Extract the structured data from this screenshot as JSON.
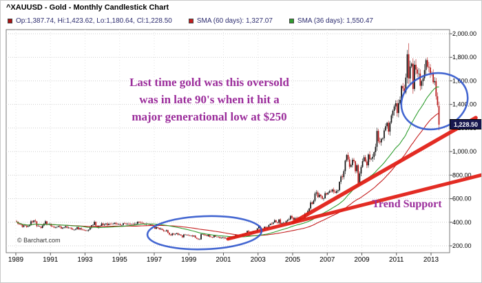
{
  "header": {
    "title": "^XAUUSD - Gold - Monthly Candlestick Chart",
    "legend": {
      "ohlc": {
        "label": "Op:1,387.74, Hi:1,423.62, Lo:1,180.64, Cl:1,228.50",
        "color": "#aa1212"
      },
      "sma60": {
        "label": "SMA (60 days): 1,327.07",
        "color": "#c41e1e"
      },
      "sma36": {
        "label": "SMA (36 days): 1,550.47",
        "color": "#2f9e2f"
      }
    }
  },
  "annotations": {
    "note_lines": [
      "Last time gold was this oversold",
      "was in late 90's when it hit a",
      "major generational low at $250"
    ],
    "trend_support_label": "Trend Support",
    "current_price_tag": "1,228.50",
    "copyright": "© Barchart.com",
    "note_color": "#9b2d9b",
    "ellipse_color": "#2f55cc",
    "trendline_color": "#e11b12"
  },
  "chart_data": {
    "type": "candlestick",
    "title": "^XAUUSD - Gold - Monthly Candlestick Chart",
    "frequency": "monthly",
    "legend_position": "top",
    "grid": true,
    "x_axis": {
      "tick_years": [
        1989,
        1991,
        1993,
        1995,
        1997,
        1999,
        2001,
        2003,
        2005,
        2007,
        2009,
        2011,
        2013
      ],
      "tick_labels": [
        "1989",
        "1991",
        "1993",
        "1995",
        "1997",
        "1999",
        "2001",
        "2003",
        "2005",
        "2007",
        "2009",
        "2011",
        "2013"
      ]
    },
    "y_axis": {
      "tick_values": [
        200,
        400,
        600,
        800,
        1000,
        1200,
        1400,
        1600,
        1800,
        2000
      ],
      "tick_labels": [
        "200.00",
        "400.00",
        "600.00",
        "800.00",
        "1,000.00",
        "1,200.00",
        "1,400.00",
        "1,600.00",
        "1,800.00",
        "2,000.00"
      ],
      "range": [
        140,
        2035
      ]
    },
    "start": {
      "year": 1989,
      "month": 1
    },
    "monthly_close": [
      404,
      387,
      383,
      378,
      361,
      373,
      369,
      360,
      366,
      375,
      408,
      401,
      415,
      408,
      368,
      368,
      363,
      352,
      372,
      388,
      408,
      380,
      384,
      386,
      366,
      363,
      355,
      357,
      361,
      368,
      362,
      347,
      355,
      357,
      366,
      353,
      354,
      353,
      344,
      337,
      337,
      343,
      358,
      340,
      349,
      339,
      335,
      333,
      329,
      329,
      337,
      354,
      375,
      378,
      403,
      371,
      355,
      369,
      370,
      390,
      377,
      382,
      389,
      377,
      387,
      386,
      385,
      386,
      395,
      384,
      383,
      383,
      375,
      376,
      392,
      390,
      385,
      387,
      383,
      382,
      384,
      383,
      387,
      387,
      405,
      400,
      396,
      391,
      390,
      382,
      387,
      386,
      379,
      379,
      371,
      369,
      345,
      358,
      351,
      340,
      345,
      334,
      326,
      324,
      332,
      311,
      296,
      290,
      304,
      297,
      301,
      308,
      293,
      296,
      288,
      273,
      296,
      292,
      294,
      288,
      287,
      287,
      280,
      287,
      268,
      261,
      255,
      255,
      299,
      300,
      291,
      290,
      283,
      294,
      276,
      275,
      272,
      289,
      277,
      277,
      274,
      265,
      269,
      272,
      265,
      266,
      258,
      264,
      267,
      271,
      266,
      274,
      293,
      279,
      275,
      277,
      282,
      297,
      301,
      308,
      327,
      319,
      304,
      313,
      323,
      317,
      318,
      348,
      368,
      347,
      336,
      339,
      361,
      346,
      355,
      376,
      388,
      386,
      398,
      416,
      402,
      396,
      424,
      388,
      393,
      395,
      391,
      410,
      420,
      425,
      453,
      438,
      422,
      435,
      428,
      435,
      417,
      437,
      429,
      433,
      473,
      470,
      495,
      517,
      568,
      556,
      582,
      644,
      653,
      613,
      634,
      623,
      599,
      603,
      646,
      636,
      651,
      664,
      661,
      677,
      659,
      650,
      665,
      672,
      743,
      789,
      783,
      834,
      923,
      971,
      933,
      871,
      885,
      930,
      918,
      833,
      884,
      730,
      814,
      869,
      919,
      952,
      916,
      883,
      975,
      934,
      939,
      955,
      995,
      1040,
      1175,
      1087,
      1078,
      1108,
      1113,
      1179,
      1215,
      1244,
      1169,
      1246,
      1307,
      1346,
      1383,
      1410,
      1327,
      1411,
      1439,
      1556,
      1536,
      1502,
      1628,
      1826,
      1620,
      1722,
      1746,
      1531,
      1737,
      1696,
      1662,
      1662,
      1558,
      1598,
      1622,
      1692,
      1776,
      1720,
      1714,
      1664,
      1660,
      1588,
      1598,
      1469,
      1394,
      1228.5
    ],
    "last_candle": {
      "open": 1387.74,
      "high": 1423.62,
      "low": 1180.64,
      "close": 1228.5
    },
    "wick_overrides": [
      {
        "year": 2011,
        "month": 9,
        "high": 1920
      }
    ],
    "overlays": [
      {
        "name": "SMA (60 days)",
        "window": 60,
        "color": "#c41e1e",
        "last_value": 1327.07
      },
      {
        "name": "SMA (36 days)",
        "window": 36,
        "color": "#2f9e2f",
        "last_value": 1550.47
      }
    ],
    "candle_up_color": "#101010",
    "candle_down_color": "#b51414"
  }
}
